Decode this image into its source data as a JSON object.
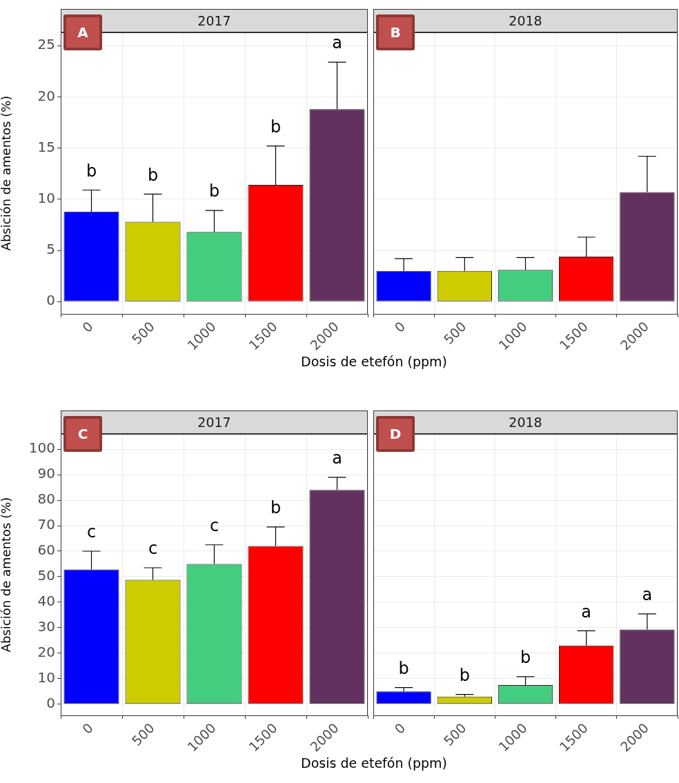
{
  "chart_data": [
    {
      "type": "bar",
      "title": "2017",
      "xlabel": "Dosis de etefón (ppm)",
      "ylabel": "Absición de amentos (%)",
      "categories": [
        "0",
        "500",
        "1000",
        "1500",
        "2000"
      ],
      "values": [
        8.8,
        7.8,
        6.8,
        11.4,
        18.8
      ],
      "colors": [
        "#0000ff",
        "#cccc00",
        "#45cd7f",
        "#ff0000",
        "#63315f"
      ],
      "errors": [
        [
          8.8,
          10.9
        ],
        [
          7.8,
          10.5
        ],
        [
          6.8,
          8.9
        ],
        [
          11.4,
          15.2
        ],
        [
          18.8,
          23.4
        ]
      ],
      "annotations": [
        "A",
        "b",
        "b",
        "b",
        "b",
        "a"
      ],
      "ylim": [
        -1.2,
        26.3
      ],
      "yticks": [
        0,
        5,
        10,
        15,
        20,
        25
      ],
      "grid": true
    },
    {
      "type": "bar",
      "title": "2018",
      "categories": [
        "0",
        "500",
        "1000",
        "1500",
        "2000"
      ],
      "values": [
        3.0,
        3.0,
        3.1,
        4.4,
        10.7
      ],
      "colors": [
        "#0000ff",
        "#cccc00",
        "#45cd7f",
        "#ff0000",
        "#63315f"
      ],
      "errors": [
        [
          3.0,
          4.2
        ],
        [
          3.0,
          4.3
        ],
        [
          3.1,
          4.3
        ],
        [
          4.4,
          6.3
        ],
        [
          10.7,
          14.2
        ]
      ],
      "annotations": [
        "B"
      ],
      "ylim": [
        -1.2,
        26.3
      ],
      "yticks": [
        0,
        5,
        10,
        15,
        20,
        25
      ],
      "tick_labels": "x",
      "grid": true
    },
    {
      "type": "bar",
      "title": "2017",
      "xlabel": "Dosis de etefón (ppm)",
      "ylabel": "Absición de amentos (%)",
      "categories": [
        "0",
        "500",
        "1000",
        "1500",
        "2000"
      ],
      "values": [
        52.8,
        48.8,
        55,
        62,
        84
      ],
      "colors": [
        "#0000ff",
        "#cccc00",
        "#45cd7f",
        "#ff0000",
        "#63315f"
      ],
      "errors": [
        [
          52.8,
          60
        ],
        [
          48.8,
          53.5
        ],
        [
          55,
          62.5
        ],
        [
          62,
          69.5
        ],
        [
          84,
          89
        ]
      ],
      "annotations": [
        "C",
        "c",
        "c",
        "c",
        "b",
        "a"
      ],
      "ylim": [
        -4.4,
        106
      ],
      "yticks": [
        0,
        10,
        20,
        30,
        40,
        50,
        60,
        70,
        80,
        90,
        100
      ],
      "grid": true
    },
    {
      "type": "bar",
      "title": "2018",
      "categories": [
        "0",
        "500",
        "1000",
        "1500",
        "2000"
      ],
      "values": [
        5,
        3,
        7.5,
        23,
        29.3
      ],
      "colors": [
        "#0000ff",
        "#cccc00",
        "#45cd7f",
        "#ff0000",
        "#63315f"
      ],
      "errors": [
        [
          5,
          6.5
        ],
        [
          3,
          3.8
        ],
        [
          7.5,
          10.8
        ],
        [
          23,
          28.8
        ],
        [
          29.3,
          35.4
        ]
      ],
      "annotations": [
        "D",
        "b",
        "b",
        "b",
        "a",
        "a"
      ],
      "ylim": [
        -4.4,
        106
      ],
      "yticks": [
        0,
        10,
        20,
        30,
        40,
        50,
        60,
        70,
        80,
        90,
        100
      ],
      "tick_labels": "x",
      "grid": true
    }
  ]
}
